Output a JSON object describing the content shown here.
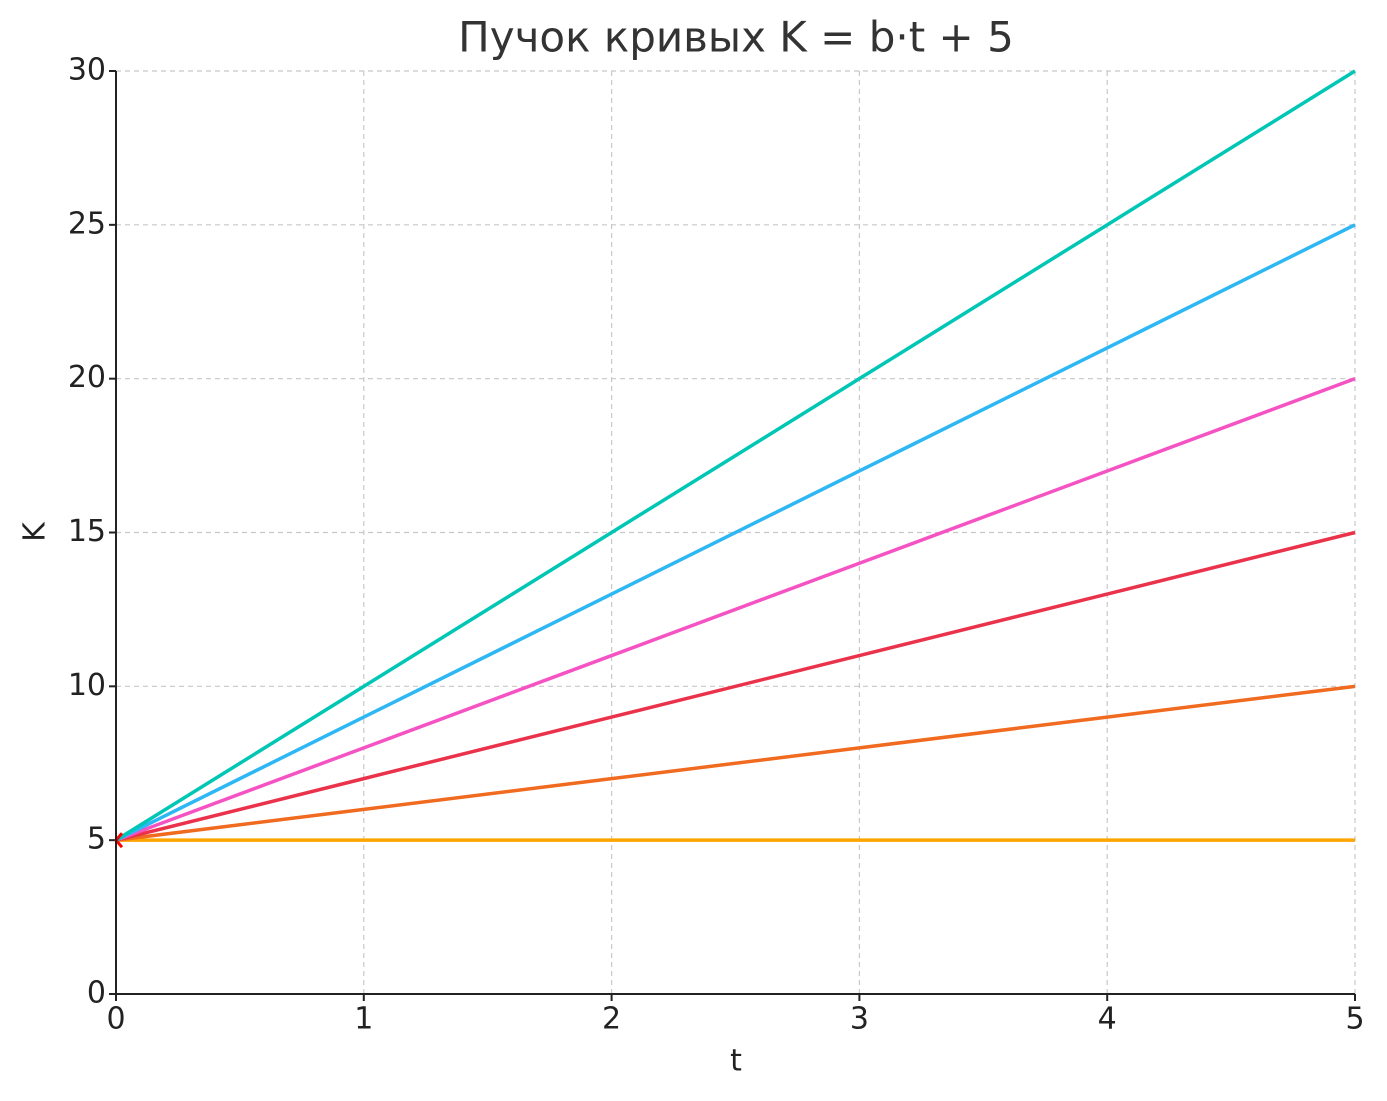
{
  "chart_data": {
    "type": "line",
    "title": "Пучок кривых K = b·t + 5",
    "x_label": "t",
    "y_label": "K",
    "x": [
      0,
      1,
      2,
      3,
      4,
      5
    ],
    "series": [
      {
        "color": "#ffa500",
        "values": [
          5,
          5,
          5,
          5,
          5,
          5
        ]
      },
      {
        "color": "#f06a1f",
        "values": [
          5,
          6,
          7,
          8,
          9,
          10
        ]
      },
      {
        "color": "#ea334b",
        "values": [
          5,
          7,
          9,
          11,
          13,
          15
        ]
      },
      {
        "color": "#f553c3",
        "values": [
          5,
          8,
          11,
          14,
          17,
          20
        ]
      },
      {
        "color": "#2db7f5",
        "values": [
          5,
          9,
          13,
          17,
          21,
          25
        ]
      },
      {
        "color": "#00c6b5",
        "values": [
          5,
          10,
          15,
          20,
          25,
          30
        ]
      }
    ],
    "marker": {
      "x": 0,
      "y": 5,
      "color": "#ff0000"
    },
    "xlim": [
      0,
      5
    ],
    "xticks": [
      0,
      1,
      2,
      3,
      4,
      5
    ],
    "ylim": [
      0,
      30
    ],
    "yticks": [
      0,
      5,
      10,
      15,
      20,
      25,
      30
    ],
    "grid": true
  }
}
